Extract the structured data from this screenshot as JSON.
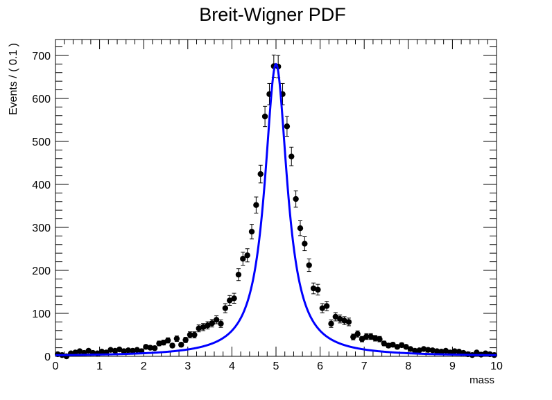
{
  "chart_data": {
    "type": "scatter",
    "title": "Breit-Wigner PDF",
    "xlabel": "mass",
    "ylabel": "Events / ( 0.1 )",
    "xlim": [
      0,
      10
    ],
    "ylim": [
      0,
      737
    ],
    "xticks": [
      0,
      1,
      2,
      3,
      4,
      5,
      6,
      7,
      8,
      9,
      10
    ],
    "yticks": [
      0,
      100,
      200,
      300,
      400,
      500,
      600,
      700
    ],
    "grid": false,
    "legend": "none",
    "series": [
      {
        "kind": "points_with_errors",
        "x": [
          0.05,
          0.15,
          0.25,
          0.35,
          0.45,
          0.55,
          0.65,
          0.75,
          0.85,
          0.95,
          1.05,
          1.15,
          1.25,
          1.35,
          1.45,
          1.55,
          1.65,
          1.75,
          1.85,
          1.95,
          2.05,
          2.15,
          2.25,
          2.35,
          2.45,
          2.55,
          2.65,
          2.75,
          2.85,
          2.95,
          3.05,
          3.15,
          3.25,
          3.35,
          3.45,
          3.55,
          3.65,
          3.75,
          3.85,
          3.95,
          4.05,
          4.15,
          4.25,
          4.35,
          4.45,
          4.55,
          4.65,
          4.75,
          4.85,
          4.95,
          5.05,
          5.15,
          5.25,
          5.35,
          5.45,
          5.55,
          5.65,
          5.75,
          5.85,
          5.95,
          6.05,
          6.15,
          6.25,
          6.35,
          6.45,
          6.55,
          6.65,
          6.75,
          6.85,
          6.95,
          7.05,
          7.15,
          7.25,
          7.35,
          7.45,
          7.55,
          7.65,
          7.75,
          7.85,
          7.95,
          8.05,
          8.15,
          8.25,
          8.35,
          8.45,
          8.55,
          8.65,
          8.75,
          8.85,
          8.95,
          9.05,
          9.15,
          9.25,
          9.35,
          9.45,
          9.55,
          9.65,
          9.75,
          9.85,
          9.95
        ],
        "y": [
          5,
          3,
          0,
          7,
          9,
          12,
          8,
          13,
          8,
          7,
          11,
          9,
          15,
          13,
          16,
          12,
          14,
          13,
          15,
          12,
          22,
          20,
          19,
          30,
          32,
          37,
          25,
          41,
          27,
          38,
          50,
          50,
          65,
          68,
          72,
          77,
          85,
          76,
          112,
          130,
          135,
          190,
          227,
          235,
          290,
          352,
          424,
          558,
          610,
          675,
          674,
          610,
          535,
          465,
          366,
          298,
          262,
          212,
          158,
          155,
          112,
          117,
          76,
          92,
          87,
          83,
          80,
          45,
          52,
          40,
          46,
          46,
          42,
          40,
          30,
          25,
          27,
          22,
          26,
          22,
          17,
          13,
          14,
          17,
          15,
          14,
          12,
          11,
          13,
          9,
          12,
          11,
          8,
          5,
          3,
          9,
          4,
          7,
          5,
          3
        ],
        "color": "#000000"
      },
      {
        "kind": "curve",
        "name": "",
        "model": "breit-wigner",
        "mean": 5.0,
        "width": 0.62,
        "peak": 680,
        "color": "#0000ff"
      }
    ]
  }
}
